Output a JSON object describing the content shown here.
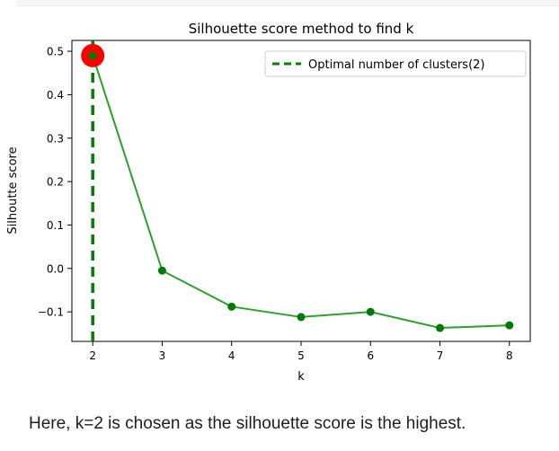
{
  "caption": "Here, k=2 is chosen as the silhouette score is the highest.",
  "chart_data": {
    "type": "line",
    "title": "Silhouette score method to find k",
    "xlabel": "k",
    "ylabel": "Silhoutte score",
    "x": [
      2,
      3,
      4,
      5,
      6,
      7,
      8
    ],
    "series": [
      {
        "values": [
          0.49,
          -0.005,
          -0.088,
          -0.112,
          -0.1,
          -0.137,
          -0.131
        ]
      }
    ],
    "optimal_k": 2,
    "optimal_score": 0.49,
    "legend": {
      "label": "Optimal number of clusters(2)",
      "placement": "top-right"
    },
    "xlim": [
      1.7,
      8.3
    ],
    "ylim": [
      -0.168,
      0.525
    ],
    "xticks": [
      2,
      3,
      4,
      5,
      6,
      7,
      8
    ],
    "yticks": [
      0.5,
      0.4,
      0.3,
      0.2,
      0.1,
      0.0,
      -0.1
    ],
    "ytick_labels": [
      "0.5",
      "0.4",
      "0.3",
      "0.2",
      "0.1",
      "0.0",
      "−0.1"
    ],
    "grid": false,
    "colors": {
      "line": "#2ca02c",
      "marker": "#007a00",
      "optimal_line": "#008000",
      "optimal_marker": "#ff0000"
    }
  }
}
